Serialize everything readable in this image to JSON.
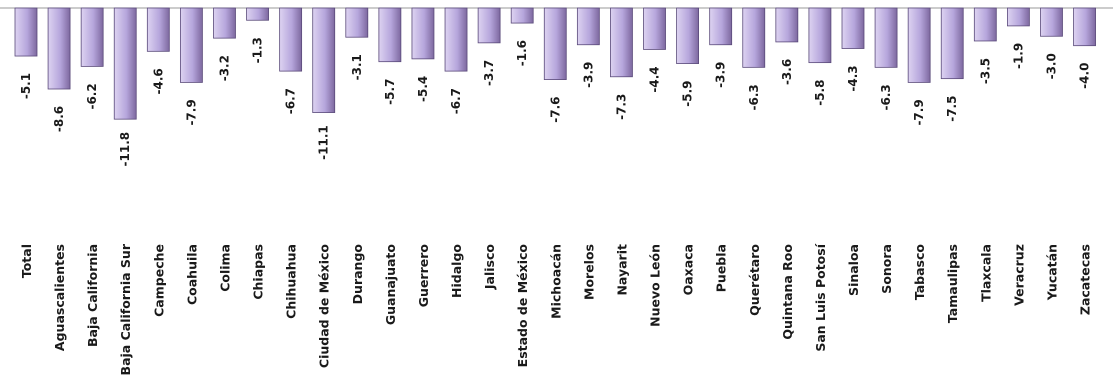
{
  "chart_data": {
    "type": "bar",
    "orientation": "vertical",
    "title": "",
    "xlabel": "",
    "ylabel": "",
    "grid": false,
    "legend": "none",
    "colors": {
      "bar_fill_light": "#ddd3f1",
      "bar_fill_mid": "#b6a6dc",
      "bar_fill_dark": "#7d689f",
      "bar_stroke": "#5a4a7a",
      "baseline": "#9a9a9a"
    },
    "categories": [
      "Total",
      "Aguascalientes",
      "Baja California",
      "Baja California Sur",
      "Campeche",
      "Coahuila",
      "Colima",
      "Chiapas",
      "Chihuahua",
      "Ciudad de México",
      "Durango",
      "Guanajuato",
      "Guerrero",
      "Hidalgo",
      "Jalisco",
      "Estado de México",
      "Michoacán",
      "Morelos",
      "Nayarit",
      "Nuevo León",
      "Oaxaca",
      "Puebla",
      "Querétaro",
      "Quintana Roo",
      "San Luis Potosí",
      "Sinaloa",
      "Sonora",
      "Tabasco",
      "Tamaulipas",
      "Tlaxcala",
      "Veracruz",
      "Yucatán",
      "Zacatecas"
    ],
    "values": [
      -5.1,
      -8.6,
      -6.2,
      -11.8,
      -4.6,
      -7.9,
      -3.2,
      -1.3,
      -6.7,
      -11.1,
      -3.1,
      -5.7,
      -5.4,
      -6.7,
      -3.7,
      -1.6,
      -7.6,
      -3.9,
      -7.3,
      -4.4,
      -5.9,
      -3.9,
      -6.3,
      -3.6,
      -5.8,
      -4.3,
      -6.3,
      -7.9,
      -7.5,
      -3.5,
      -1.9,
      -3.0,
      -4.0
    ],
    "value_labels": [
      "-5.1",
      "-8.6",
      "-6.2",
      "-11.8",
      "-4.6",
      "-7.9",
      "-3.2",
      "-1.3",
      "-6.7",
      "-11.1",
      "-3.1",
      "-5.7",
      "-5.4",
      "-6.7",
      "-3.7",
      "-1.6",
      "-7.6",
      "-3.9",
      "-7.3",
      "-4.4",
      "-5.9",
      "-3.9",
      "-6.3",
      "-3.6",
      "-5.8",
      "-4.3",
      "-6.3",
      "-7.9",
      "-7.5",
      "-3.5",
      "-1.9",
      "-3.0",
      "-4.0"
    ]
  }
}
